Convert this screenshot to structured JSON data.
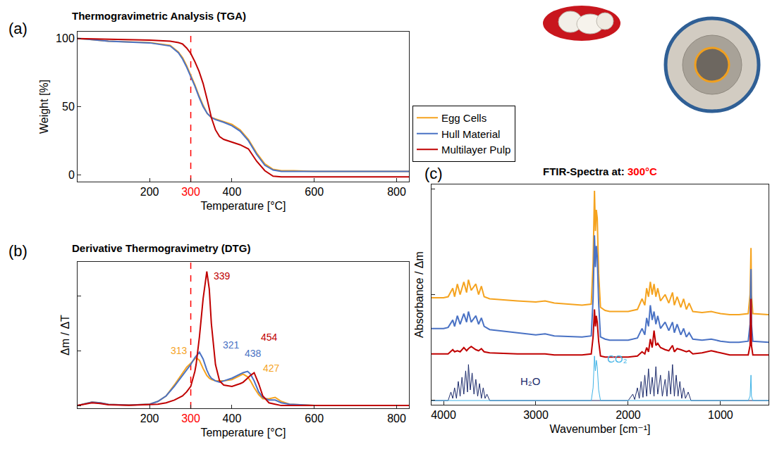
{
  "chart_data": [
    {
      "type": "line",
      "panel": "(a)",
      "title": "Thermogravimetric Analysis (TGA)",
      "x_label": "Temperature [°C]",
      "y_label": "Weight [%]",
      "xlim": [
        25,
        830
      ],
      "ylim": [
        -5,
        105
      ],
      "xticks": [
        200,
        300,
        400,
        600,
        800
      ],
      "yticks": [
        0,
        50,
        100
      ],
      "grid": false,
      "legend": "right",
      "reference_line": {
        "x": 300,
        "color": "#ff0000"
      },
      "x": [
        25,
        50,
        100,
        150,
        200,
        250,
        270,
        280,
        290,
        300,
        310,
        320,
        330,
        340,
        350,
        360,
        370,
        380,
        400,
        420,
        440,
        460,
        480,
        500,
        520,
        550,
        600,
        700,
        800,
        830
      ],
      "series": [
        {
          "name": "Egg Cells",
          "color": "#f5a31f",
          "values": [
            100,
            99.5,
            98,
            97.5,
            97,
            95,
            90,
            86,
            80,
            73,
            66,
            58,
            51,
            45,
            42,
            41,
            40,
            39,
            37,
            33,
            26,
            16,
            8,
            4,
            3,
            3,
            2.5,
            2.5,
            2.5,
            2.5
          ]
        },
        {
          "name": "Hull Material",
          "color": "#4a72c4",
          "values": [
            100,
            99.5,
            98,
            97.5,
            96.8,
            94.5,
            89.5,
            85,
            79,
            72,
            65,
            57,
            50,
            45,
            42,
            40.5,
            39.5,
            38.5,
            36,
            32,
            25,
            15,
            7,
            3.5,
            2.5,
            2.5,
            2.5,
            2.5,
            2.5,
            2.5
          ]
        },
        {
          "name": "Multilayer Pulp",
          "color": "#c00000",
          "values": [
            100,
            99.8,
            99.3,
            99,
            98.8,
            98,
            97,
            96,
            93,
            89,
            83,
            76,
            67,
            55,
            42,
            33,
            28,
            26,
            24,
            22,
            19,
            10,
            3,
            -1,
            -1.5,
            -1.5,
            -1.5,
            -1.5,
            -1.5,
            -1.5
          ]
        }
      ]
    },
    {
      "type": "line",
      "panel": "(b)",
      "title": "Derivative Thermogravimetry (DTG)",
      "x_label": "Temperature [°C]",
      "y_label": "Δm / ΔT",
      "xlim": [
        25,
        830
      ],
      "ylim": [
        -0.02,
        1.05
      ],
      "xticks": [
        200,
        300,
        400,
        600,
        800
      ],
      "yticks": [
        0,
        0.4,
        0.8
      ],
      "tick_labels": "x",
      "grid": false,
      "reference_line": {
        "x": 300,
        "color": "#ff0000"
      },
      "x": [
        25,
        40,
        60,
        80,
        100,
        150,
        200,
        220,
        240,
        260,
        280,
        290,
        300,
        310,
        313,
        321,
        330,
        339,
        345,
        350,
        360,
        370,
        380,
        400,
        420,
        427,
        438,
        445,
        454,
        465,
        475,
        490,
        505,
        520,
        540,
        600,
        700,
        800,
        830
      ],
      "series": [
        {
          "name": "Egg Cells",
          "color": "#f5a31f",
          "values": [
            0,
            0.01,
            0.025,
            0.02,
            0.008,
            0.003,
            0.01,
            0.03,
            0.07,
            0.15,
            0.24,
            0.28,
            0.31,
            0.34,
            0.35,
            0.33,
            0.27,
            0.22,
            0.2,
            0.19,
            0.18,
            0.18,
            0.18,
            0.19,
            0.22,
            0.23,
            0.21,
            0.18,
            0.13,
            0.08,
            0.05,
            0.05,
            0.06,
            0.03,
            0.01,
            0,
            0,
            0,
            0
          ],
          "peaks": [
            {
              "x": 313,
              "y": 0.35
            },
            {
              "x": 427,
              "y": 0.23
            }
          ]
        },
        {
          "name": "Hull Material",
          "color": "#4a72c4",
          "values": [
            0,
            0.01,
            0.025,
            0.02,
            0.008,
            0.003,
            0.01,
            0.03,
            0.07,
            0.14,
            0.22,
            0.26,
            0.3,
            0.35,
            0.36,
            0.39,
            0.34,
            0.26,
            0.22,
            0.2,
            0.18,
            0.17,
            0.18,
            0.2,
            0.23,
            0.24,
            0.25,
            0.23,
            0.18,
            0.1,
            0.06,
            0.04,
            0.04,
            0.02,
            0.01,
            0,
            0,
            0,
            0
          ],
          "peaks": [
            {
              "x": 321,
              "y": 0.39
            },
            {
              "x": 438,
              "y": 0.25
            }
          ]
        },
        {
          "name": "Multilayer Pulp",
          "color": "#c00000",
          "values": [
            0,
            0.008,
            0.02,
            0.015,
            0.006,
            0.002,
            0.005,
            0.01,
            0.02,
            0.04,
            0.07,
            0.1,
            0.14,
            0.25,
            0.3,
            0.5,
            0.78,
            0.98,
            0.85,
            0.6,
            0.3,
            0.18,
            0.15,
            0.14,
            0.16,
            0.17,
            0.2,
            0.22,
            0.24,
            0.16,
            0.07,
            0.02,
            0.01,
            0,
            0,
            0,
            0,
            0,
            0
          ],
          "peaks": [
            {
              "x": 339,
              "y": 0.98
            },
            {
              "x": 454,
              "y": 0.24
            }
          ]
        }
      ]
    },
    {
      "type": "line",
      "panel": "(c)",
      "title": "FTIR-Spectra at: 300°C",
      "title_highlight": {
        "text": "300°C",
        "color": "#ff0000"
      },
      "x_label": "Wavenumber [cm⁻¹]",
      "y_label": "Absorbance / Δm",
      "xlim": [
        4130,
        480
      ],
      "ylim": [
        -0.2,
        10.2
      ],
      "xticks": [
        4000,
        3000,
        2000,
        1000
      ],
      "yticks": [
        0,
        5,
        10
      ],
      "tick_labels": "x",
      "grid": false,
      "x": [
        4130,
        4000,
        3950,
        3900,
        3880,
        3850,
        3820,
        3780,
        3750,
        3730,
        3700,
        3650,
        3620,
        3590,
        3560,
        3500,
        3200,
        3000,
        2900,
        2800,
        2500,
        2400,
        2380,
        2365,
        2355,
        2345,
        2335,
        2320,
        2300,
        2250,
        2200,
        2000,
        1900,
        1850,
        1820,
        1800,
        1780,
        1760,
        1740,
        1720,
        1700,
        1680,
        1650,
        1600,
        1560,
        1520,
        1500,
        1470,
        1430,
        1400,
        1370,
        1340,
        1300,
        1200,
        1100,
        1000,
        900,
        800,
        700,
        680,
        670,
        665,
        650,
        480
      ],
      "series": [
        {
          "name": "Egg Cells",
          "color": "#f5a31f",
          "values": [
            4.85,
            4.85,
            4.9,
            5.3,
            4.9,
            5.5,
            5.0,
            5.6,
            5.1,
            5.7,
            5.2,
            5.5,
            5.0,
            5.4,
            4.9,
            4.8,
            4.7,
            4.65,
            4.7,
            4.6,
            4.5,
            4.55,
            6.5,
            9.9,
            8.0,
            9.0,
            8.6,
            6.0,
            4.4,
            4.25,
            4.2,
            4.2,
            4.3,
            4.8,
            4.5,
            5.3,
            4.9,
            5.6,
            5.0,
            5.5,
            4.9,
            5.3,
            4.7,
            5.0,
            4.6,
            5.1,
            4.5,
            4.9,
            4.4,
            4.8,
            4.3,
            4.6,
            4.2,
            4.15,
            4.2,
            4.1,
            4.05,
            4.05,
            4.1,
            5.0,
            7.2,
            5.0,
            4.1,
            4.05
          ]
        },
        {
          "name": "Hull Material",
          "color": "#4a72c4",
          "values": [
            3.4,
            3.4,
            3.45,
            3.8,
            3.5,
            4.0,
            3.6,
            4.1,
            3.7,
            4.2,
            3.7,
            4.0,
            3.6,
            3.9,
            3.5,
            3.35,
            3.2,
            3.1,
            3.15,
            3.05,
            3.0,
            3.05,
            4.8,
            7.8,
            6.3,
            7.3,
            6.8,
            4.6,
            3.0,
            2.9,
            2.85,
            2.85,
            2.95,
            3.4,
            3.1,
            3.9,
            3.5,
            4.5,
            3.8,
            4.2,
            3.6,
            4.0,
            3.4,
            3.7,
            3.3,
            3.7,
            3.2,
            3.6,
            3.1,
            3.4,
            3.0,
            3.2,
            2.9,
            2.85,
            2.9,
            2.8,
            2.75,
            2.75,
            2.8,
            3.6,
            6.2,
            3.6,
            2.8,
            2.75
          ]
        },
        {
          "name": "Multilayer Pulp",
          "color": "#c00000",
          "values": [
            2.2,
            2.2,
            2.2,
            2.4,
            2.3,
            2.35,
            2.3,
            2.5,
            2.35,
            2.45,
            2.55,
            2.4,
            2.35,
            2.45,
            2.3,
            2.25,
            2.2,
            2.2,
            2.2,
            2.15,
            2.15,
            2.2,
            3.0,
            4.3,
            3.5,
            4.0,
            3.7,
            2.8,
            2.1,
            2.05,
            2.05,
            2.05,
            2.1,
            2.3,
            2.2,
            2.5,
            2.3,
            2.9,
            2.5,
            3.3,
            2.6,
            2.7,
            2.5,
            2.4,
            2.35,
            2.6,
            2.3,
            2.45,
            2.4,
            2.35,
            2.3,
            2.35,
            2.2,
            2.25,
            2.35,
            2.25,
            2.15,
            2.15,
            2.15,
            2.6,
            4.8,
            2.6,
            2.15,
            2.15
          ]
        }
      ],
      "reference_series": [
        {
          "name": "H₂O",
          "color": "#1b2a6b",
          "x": [
            4130,
            3950,
            3920,
            3900,
            3880,
            3860,
            3840,
            3820,
            3800,
            3780,
            3760,
            3740,
            3730,
            3710,
            3690,
            3670,
            3650,
            3630,
            3610,
            3590,
            3570,
            3550,
            3530,
            3500,
            2000,
            1950,
            1930,
            1900,
            1880,
            1860,
            1840,
            1820,
            1800,
            1780,
            1760,
            1740,
            1720,
            1700,
            1680,
            1650,
            1630,
            1600,
            1580,
            1560,
            1540,
            1520,
            1500,
            1480,
            1460,
            1440,
            1420,
            1400,
            1380,
            1350,
            1320,
            480
          ],
          "values": [
            0,
            0,
            0.4,
            0.1,
            0.6,
            0.1,
            0.9,
            0.2,
            1.1,
            0.3,
            1.4,
            0.4,
            1.7,
            0.5,
            1.3,
            0.3,
            1.0,
            0.2,
            0.8,
            0.1,
            0.6,
            0.1,
            0.3,
            0,
            0,
            0.3,
            0.05,
            0.6,
            0.1,
            0.9,
            0.15,
            1.2,
            0.2,
            1.5,
            0.3,
            1.1,
            0.2,
            1.6,
            0.3,
            1.2,
            0.2,
            1.0,
            0.2,
            1.4,
            0.3,
            1.7,
            0.2,
            1.2,
            0.2,
            0.9,
            0.1,
            0.6,
            0.1,
            0.4,
            0,
            0
          ]
        },
        {
          "name": "CO₂",
          "color": "#3fb3e6",
          "x": [
            4130,
            2400,
            2380,
            2365,
            2355,
            2345,
            2335,
            2320,
            2300,
            700,
            680,
            670,
            665,
            650,
            480
          ],
          "values": [
            0,
            0,
            0.6,
            2.1,
            1.4,
            1.9,
            1.6,
            0.5,
            0,
            0,
            0.2,
            1.2,
            0.2,
            0,
            0
          ]
        }
      ]
    }
  ]
}
